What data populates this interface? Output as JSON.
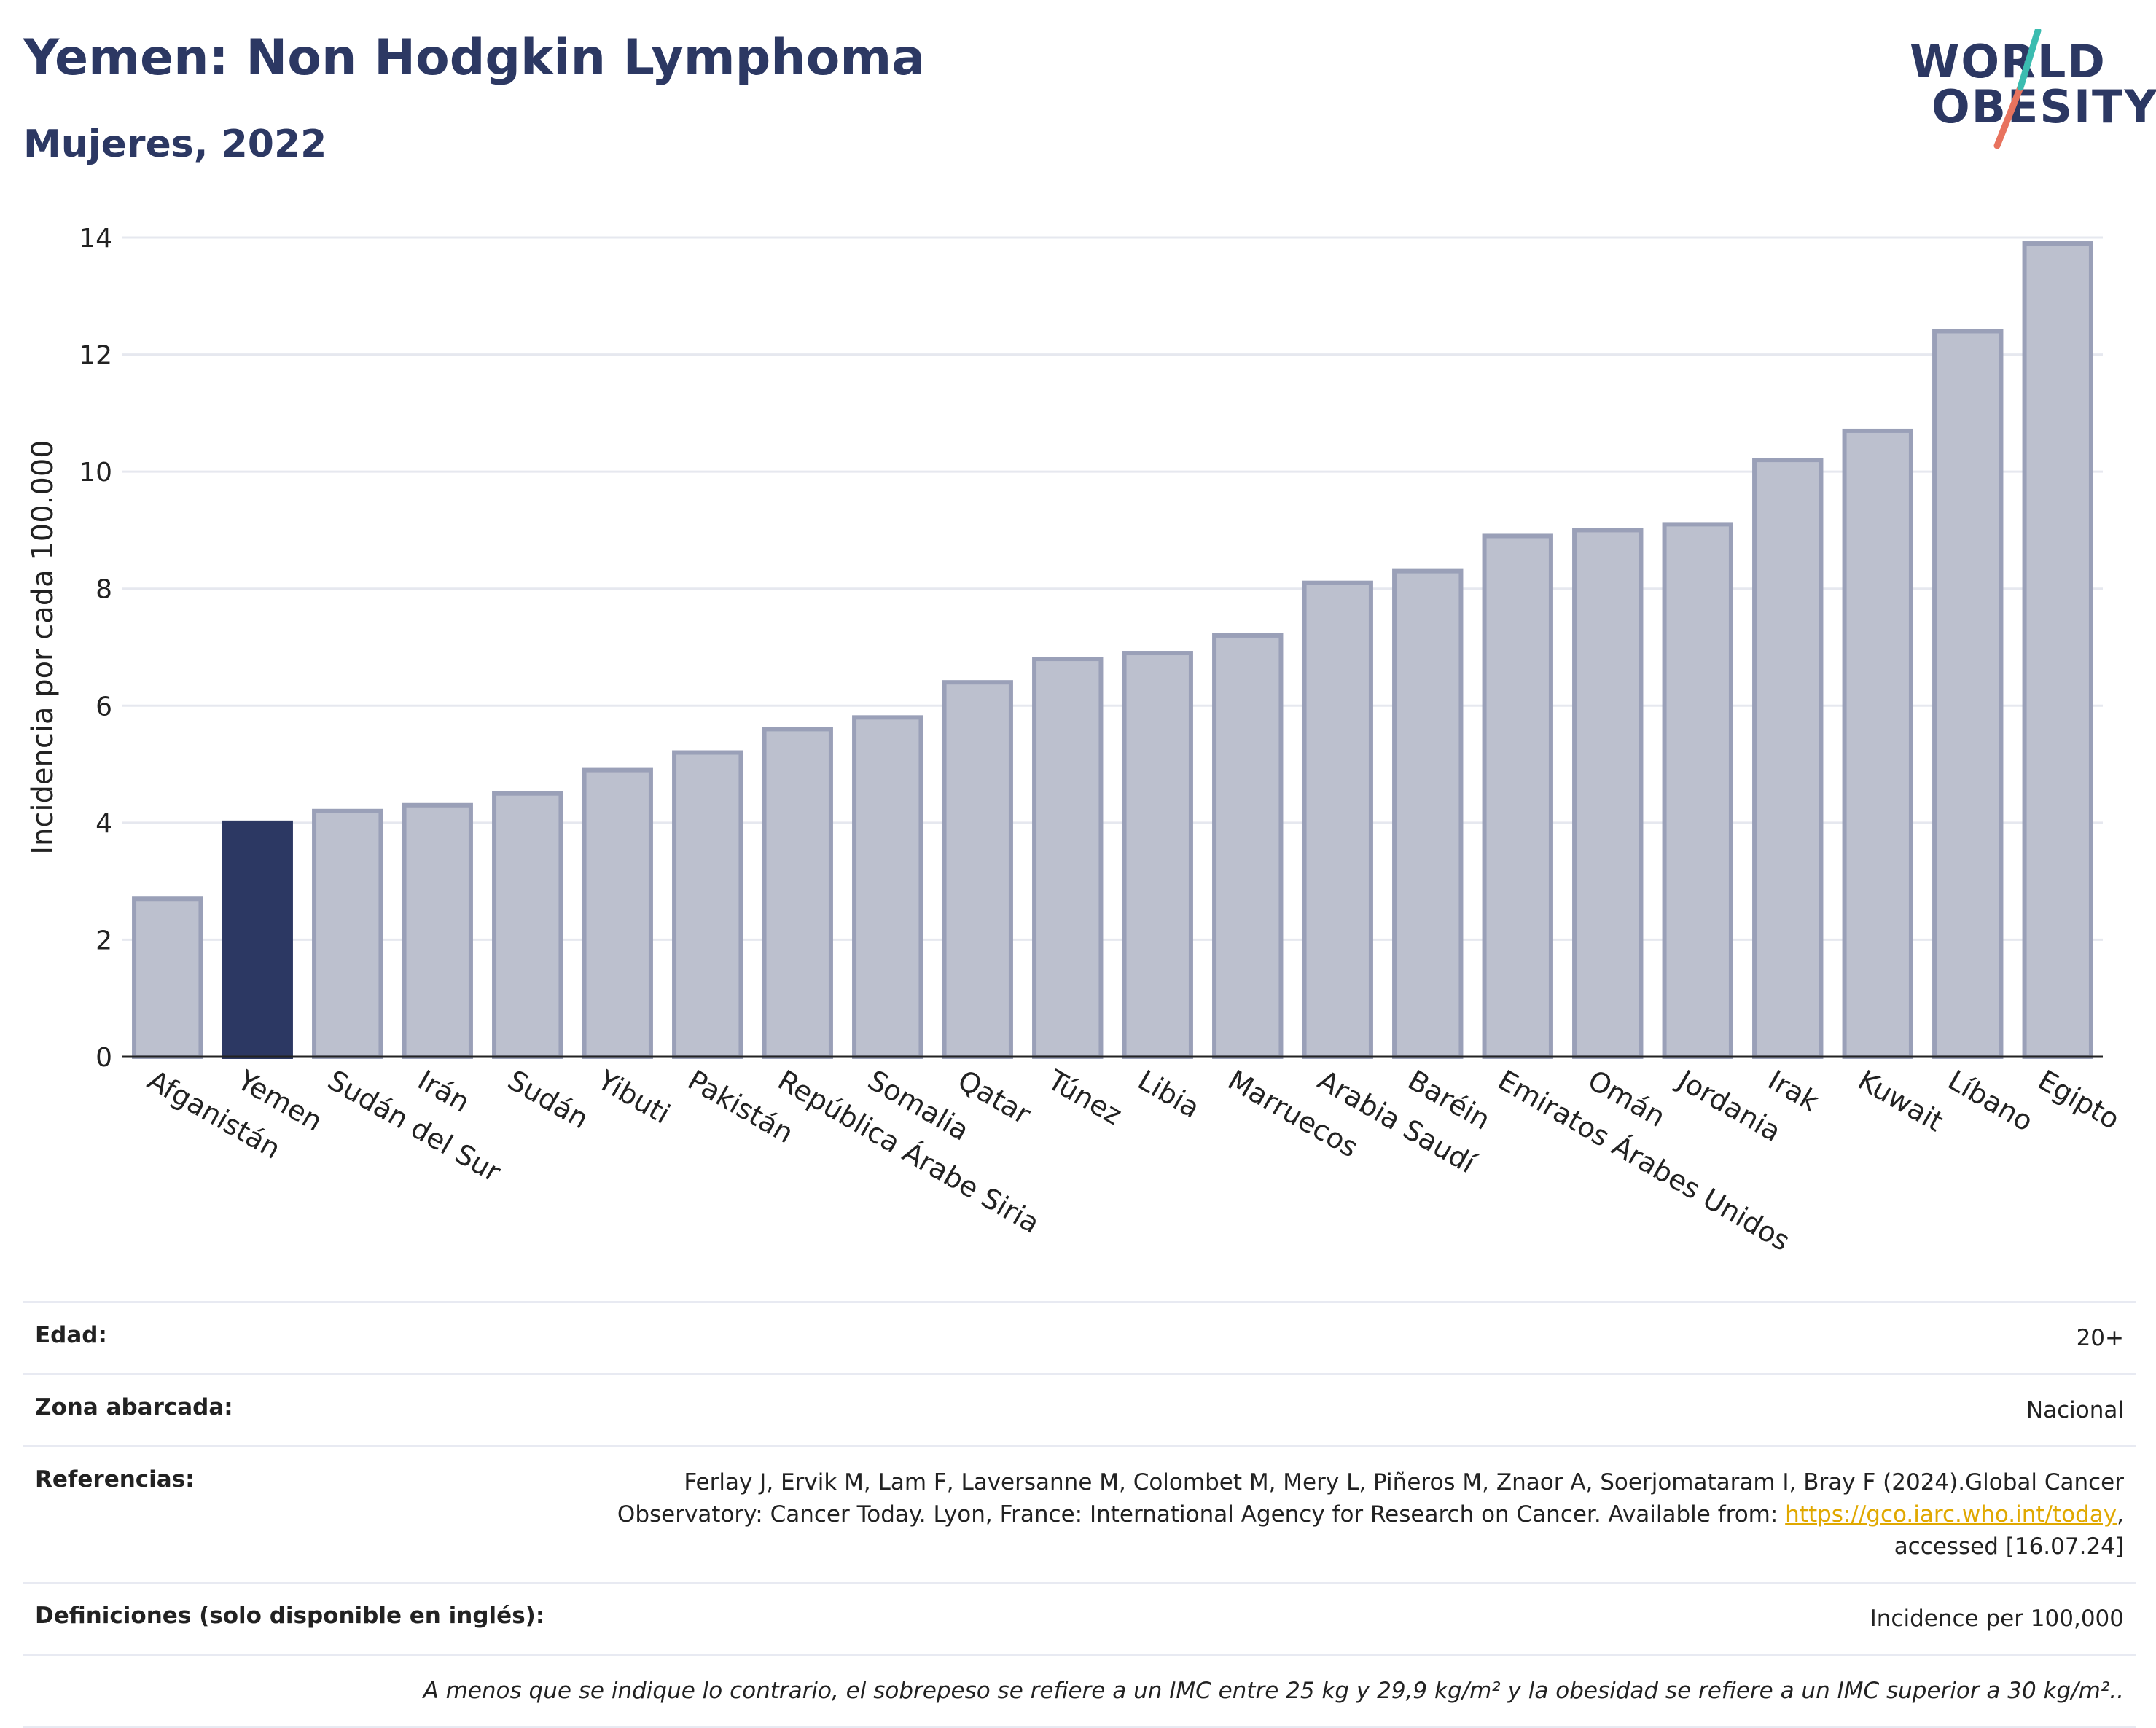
{
  "header": {
    "title": "Yemen: Non Hodgkin Lymphoma",
    "subtitle": "Mujeres, 2022"
  },
  "logo": {
    "line1": "WORLD",
    "line2": "OBESITY"
  },
  "colors": {
    "highlight": "#2c3863",
    "bar": "#bcc0ce",
    "bar_border": "#9aa0b8",
    "grid": "#e6e8ef",
    "axis": "#222222"
  },
  "chart_data": {
    "type": "bar",
    "ylabel": "Incidencia por cada 100.000",
    "ylim": [
      0,
      14
    ],
    "yticks": [
      0,
      2,
      4,
      6,
      8,
      10,
      12,
      14
    ],
    "grid": true,
    "highlight": "Yemen",
    "categories": [
      "Afganistán",
      "Yemen",
      "Sudán del Sur",
      "Irán",
      "Sudán",
      "Yibuti",
      "Pakistán",
      "República Árabe Siria",
      "Somalia",
      "Qatar",
      "Túnez",
      "Libia",
      "Marruecos",
      "Arabia Saudí",
      "Baréin",
      "Emiratos Árabes Unidos",
      "Omán",
      "Jordania",
      "Irak",
      "Kuwait",
      "Líbano",
      "Egipto"
    ],
    "values": [
      2.7,
      4.0,
      4.2,
      4.3,
      4.5,
      4.9,
      5.2,
      5.6,
      5.8,
      6.4,
      6.8,
      6.9,
      7.2,
      8.1,
      8.3,
      8.9,
      9.0,
      9.1,
      10.2,
      10.7,
      12.4,
      13.9
    ]
  },
  "meta": {
    "edad_label": "Edad:",
    "edad_value": "20+",
    "zona_label": "Zona abarcada:",
    "zona_value": "Nacional",
    "ref_label": "Referencias:",
    "ref_line1": "Ferlay J, Ervik M, Lam F, Laversanne M, Colombet M, Mery L, Piñeros M, Znaor A, Soerjomataram I, Bray F (2024).Global Cancer",
    "ref_line2_pre": "Observatory: Cancer Today. Lyon, France: International Agency for Research on Cancer. Available from: ",
    "ref_link": "https://gco.iarc.who.int/today",
    "ref_line2_post": ",",
    "ref_line3": "accessed [16.07.24]",
    "def_label": "Definiciones (solo disponible en inglés):",
    "def_value": "Incidence per 100,000",
    "note": "A menos que se indique lo contrario, el sobrepeso se refiere a un IMC entre 25 kg y 29,9 kg/m² y la obesidad se refiere a un IMC superior a 30 kg/m².."
  }
}
